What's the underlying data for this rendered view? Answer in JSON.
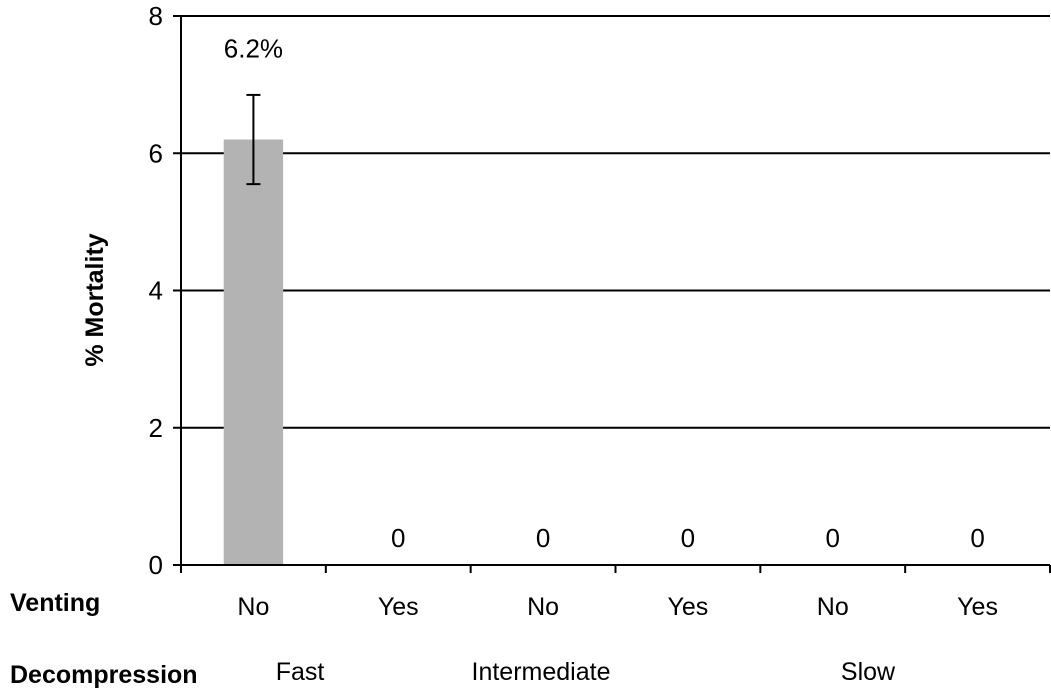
{
  "chart_data": {
    "type": "bar",
    "title": "",
    "ylabel": "% Mortality",
    "xlabel": "",
    "ylim": [
      0,
      8
    ],
    "yticks": [
      0,
      2,
      4,
      6,
      8
    ],
    "grid": true,
    "categories": [
      "No",
      "Yes",
      "No",
      "Yes",
      "No",
      "Yes"
    ],
    "values": [
      6.2,
      0,
      0,
      0,
      0,
      0
    ],
    "data_labels": [
      "6.2%",
      "0",
      "0",
      "0",
      "0",
      "0"
    ],
    "error": [
      0.65,
      null,
      null,
      null,
      null,
      null
    ],
    "bar_color": "#b3b3b3",
    "row_titles": {
      "venting": "Venting",
      "decompression": "Decompression"
    },
    "groups": [
      {
        "label": "Fast",
        "span": [
          0,
          1
        ]
      },
      {
        "label": "Intermediate",
        "span": [
          2,
          3
        ]
      },
      {
        "label": "Slow",
        "span": [
          4,
          5
        ]
      }
    ]
  }
}
